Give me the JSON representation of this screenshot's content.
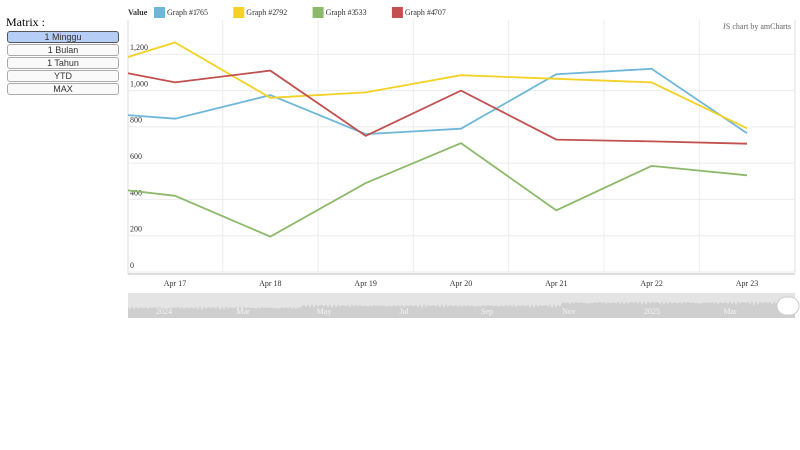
{
  "ui": {
    "matrix_label": "Matrix :",
    "buttons": [
      "1 Minggu",
      "1 Bulan",
      "1 Tahun",
      "YTD",
      "MAX"
    ],
    "value_label": "Value",
    "credit": "JS chart by amCharts",
    "navigator_labels": [
      "2024",
      "Mar",
      "May",
      "Jul",
      "Sep",
      "Nov",
      "2025",
      "Mar"
    ]
  },
  "chart_data": {
    "type": "line",
    "categories": [
      null,
      "Apr 17",
      "Apr 18",
      "Apr 19",
      "Apr 20",
      "Apr 21",
      "Apr 22",
      "Apr 23"
    ],
    "series": [
      {
        "name": "Graph #1",
        "color": "#6fb7d8",
        "values": [
          865,
          845,
          975,
          760,
          790,
          1090,
          1120,
          765
        ]
      },
      {
        "name": "Graph #2",
        "color": "#f4d125",
        "values": [
          1185,
          1265,
          960,
          990,
          1085,
          1065,
          1045,
          792
        ]
      },
      {
        "name": "Graph #3",
        "color": "#8db96a",
        "values": [
          450,
          420,
          195,
          490,
          710,
          340,
          585,
          533
        ]
      },
      {
        "name": "Graph #4",
        "color": "#c1504f",
        "values": [
          1095,
          1045,
          1110,
          750,
          1000,
          730,
          720,
          707
        ]
      }
    ],
    "ylim": [
      0,
      1400
    ],
    "yticks": [
      0,
      200,
      400,
      600,
      800,
      {
        "value": 1000,
        "label": "1,000"
      },
      {
        "value": 1200,
        "label": "1,200"
      }
    ],
    "grid": true
  }
}
